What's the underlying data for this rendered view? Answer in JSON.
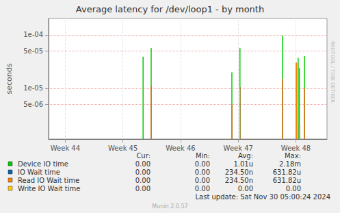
{
  "chart_data": {
    "type": "bar",
    "title": "Average latency for /dev/loop1 - by month",
    "ylabel": "seconds",
    "log": "y",
    "grid": true,
    "x": [
      45.35,
      45.49,
      46.89,
      47.03,
      47.77,
      48.01,
      48.04,
      48.06,
      48.15
    ],
    "xlim": [
      43.71,
      48.54
    ],
    "xticks": [
      {
        "value": 44,
        "label": "Week 44"
      },
      {
        "value": 45,
        "label": "Week 45"
      },
      {
        "value": 46,
        "label": "Week 46"
      },
      {
        "value": 47,
        "label": "Week 47"
      },
      {
        "value": 48,
        "label": "Week 48"
      }
    ],
    "ylim": [
      1.12e-06,
      0.000203
    ],
    "yticks": [
      {
        "value": 5e-06,
        "label": "5e-06"
      },
      {
        "value": 1e-05,
        "label": "1e-05"
      },
      {
        "value": 5e-05,
        "label": "5e-05"
      },
      {
        "value": 0.0001,
        "label": "1e-04"
      }
    ],
    "stats_columns": [
      "Cur:",
      "Min:",
      "Avg:",
      "Max:"
    ],
    "series": [
      {
        "name": "Device IO time",
        "color": "#00cc00",
        "values": [
          3.9e-05,
          5.7e-05,
          2e-05,
          5.7e-05,
          9.7e-05,
          3e-05,
          3.7e-05,
          2.4e-05,
          4e-05
        ],
        "stats": [
          "0.00",
          "0.00",
          "1.01u",
          "2.18m"
        ]
      },
      {
        "name": "IO Wait time",
        "color": "#0066b3",
        "values": [
          null,
          1.1e-05,
          5e-06,
          1.05e-05,
          1.5e-05,
          3e-05,
          null,
          2.2e-06,
          1e-05
        ],
        "stats": [
          "0.00",
          "0.00",
          "234.50n",
          "631.82u"
        ]
      },
      {
        "name": "Read IO Wait time",
        "color": "#ff8000",
        "values": [
          null,
          1.1e-05,
          5e-06,
          1.05e-05,
          1.5e-05,
          3e-05,
          null,
          2.2e-06,
          1e-05
        ],
        "stats": [
          "0.00",
          "0.00",
          "234.50n",
          "631.82u"
        ]
      },
      {
        "name": "Write IO Wait time",
        "color": "#ffcc00",
        "values": [
          null,
          null,
          null,
          null,
          null,
          null,
          null,
          null,
          null
        ],
        "stats": [
          "0.00",
          "0.00",
          "0.00",
          "0.00"
        ]
      }
    ],
    "footer": "Last update: Sat Nov 30 05:00:24 2024",
    "generator": "Munin 2.0.57",
    "watermark": "RRDTOOL / TOBI OETIKER"
  }
}
